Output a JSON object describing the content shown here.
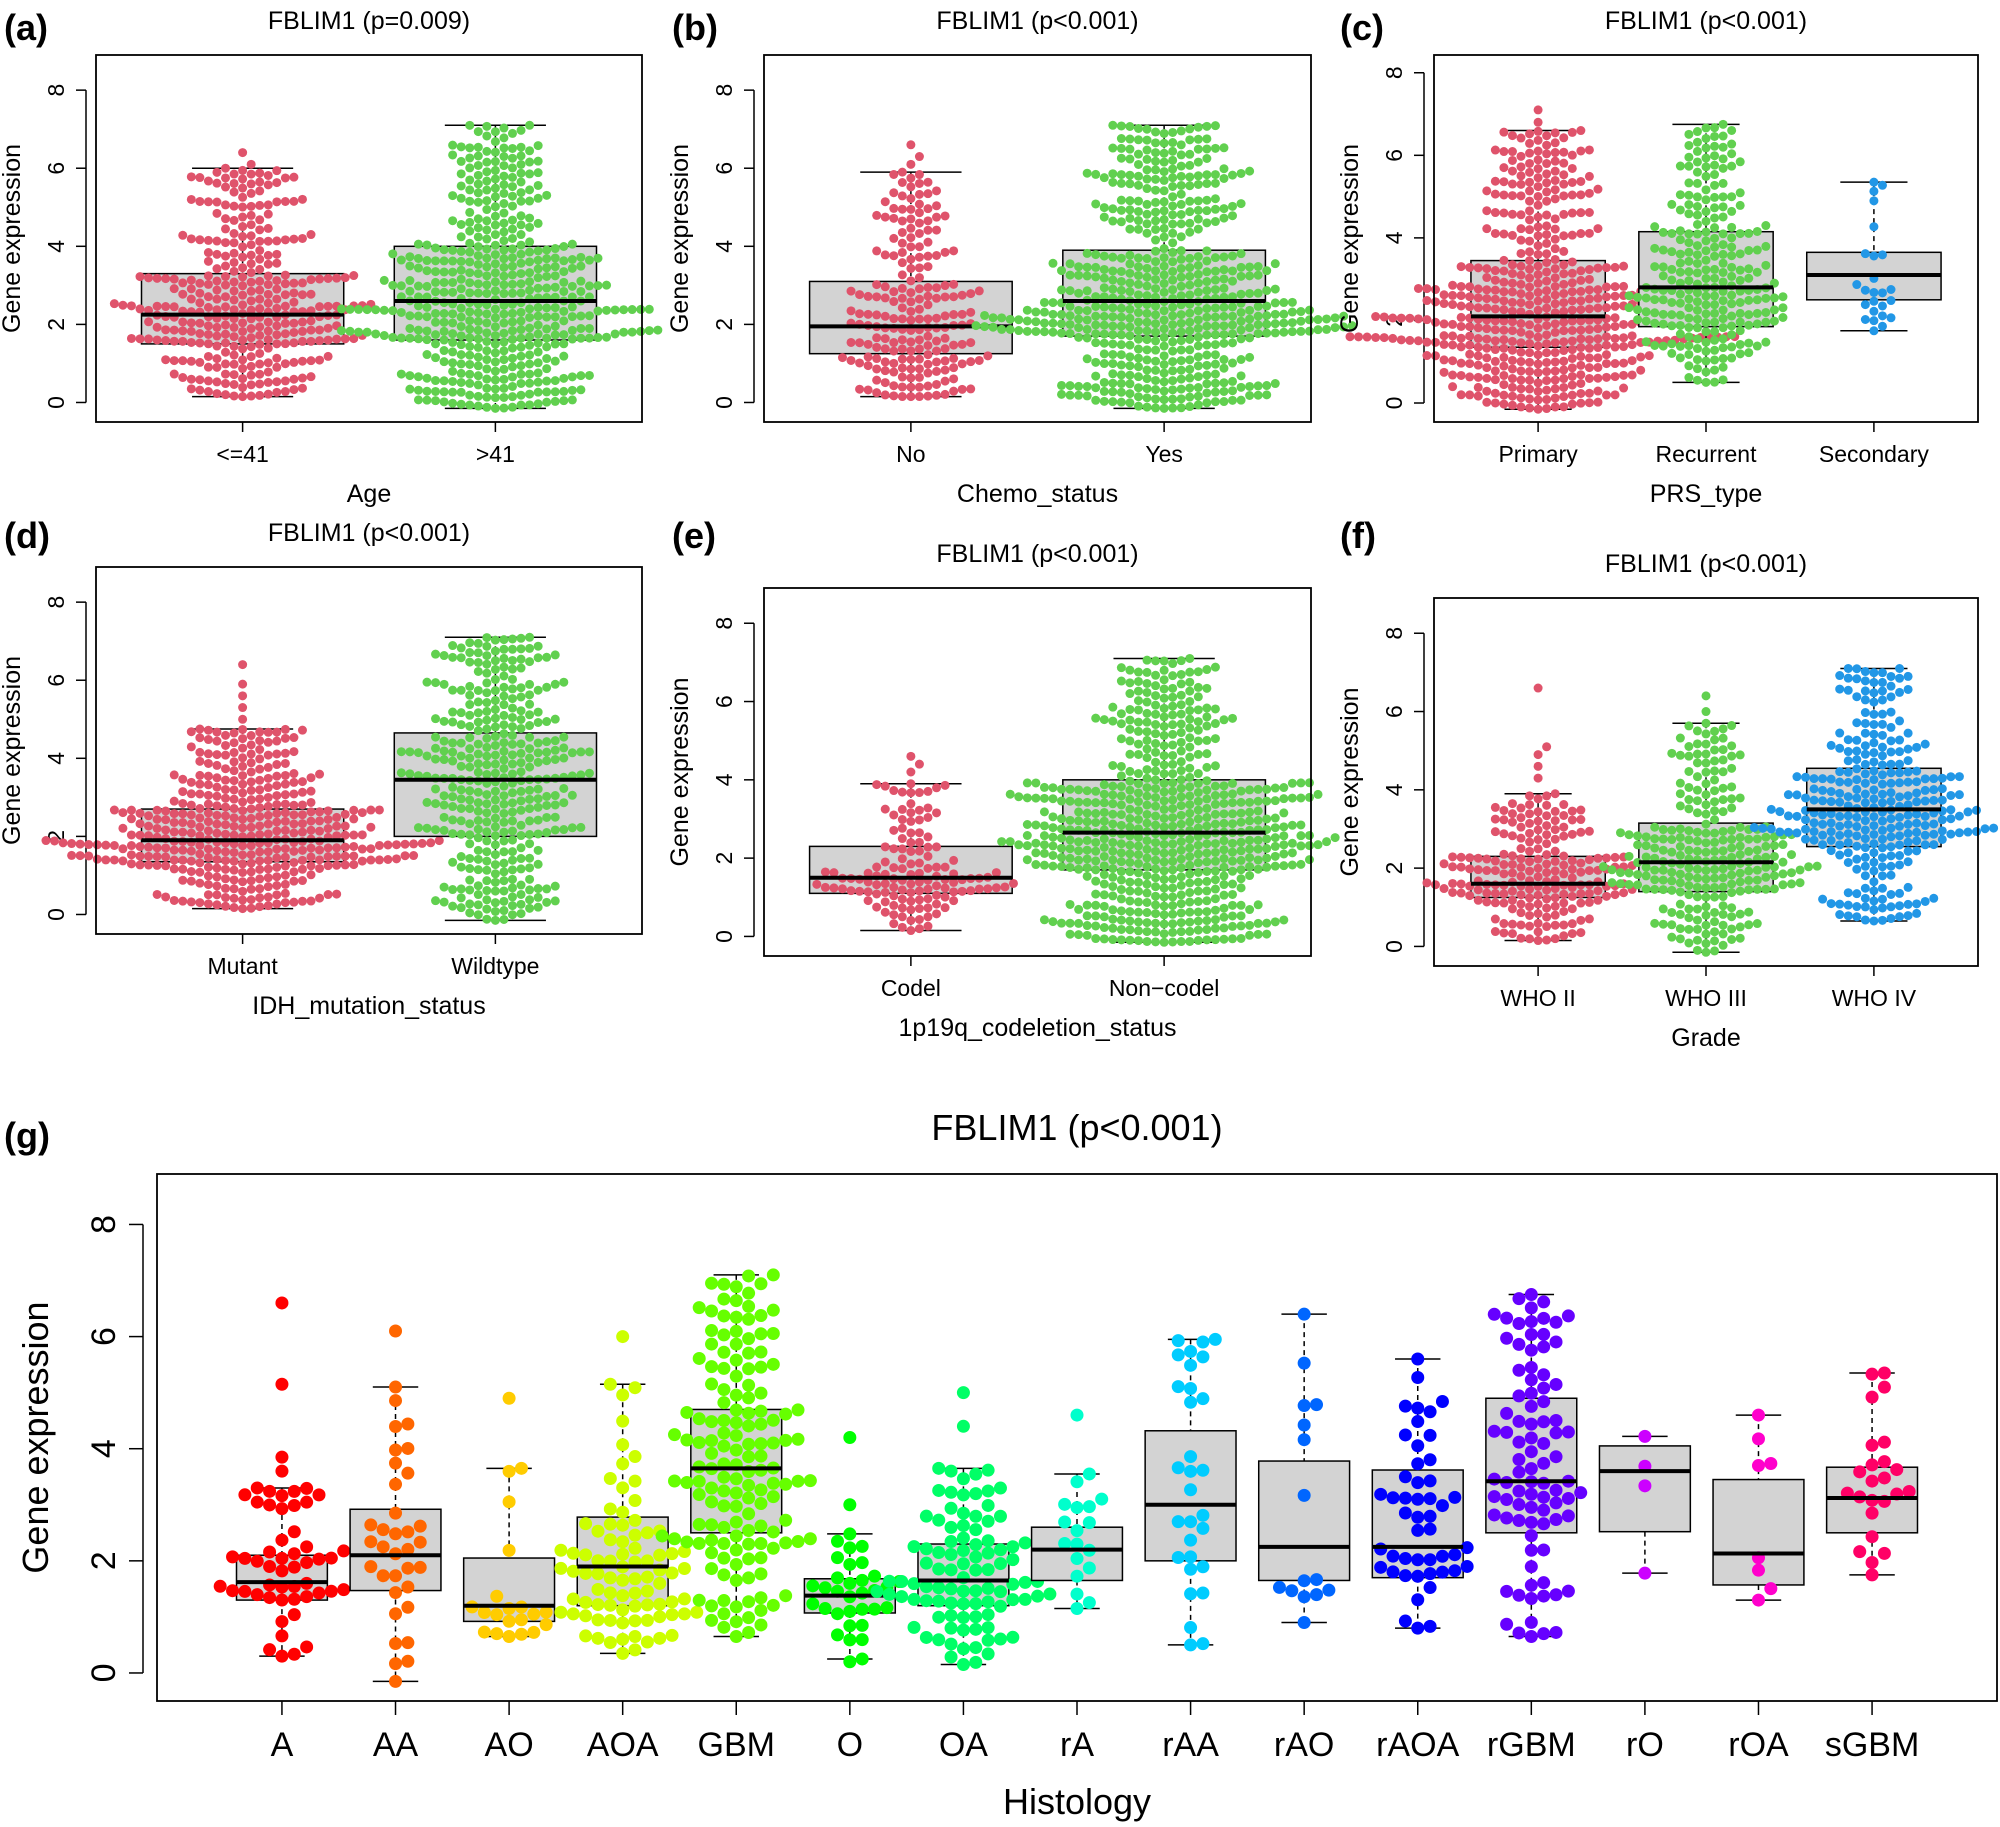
{
  "chart_data": [
    {
      "panel_label": "(a)",
      "type": "box",
      "title": "FBLIM1 (p=0.009)",
      "xlabel": "Age",
      "ylabel": "Gene expression",
      "ylim": [
        -0.5,
        8.9
      ],
      "yticks": [
        0,
        2,
        4,
        6,
        8
      ],
      "categories": [
        "<=41",
        ">41"
      ],
      "colors": [
        "#df536b",
        "#61d04f"
      ],
      "boxes": [
        {
          "min": 0.15,
          "q1": 1.5,
          "median": 2.25,
          "q3": 3.3,
          "max": 6.0,
          "outliers": [
            6.1,
            6.4
          ]
        },
        {
          "min": -0.15,
          "q1": 1.6,
          "median": 2.6,
          "q3": 4.0,
          "max": 7.1,
          "outliers": []
        }
      ]
    },
    {
      "panel_label": "(b)",
      "type": "box",
      "title": "FBLIM1 (p<0.001)",
      "xlabel": "Chemo_status",
      "ylabel": "Gene expression",
      "ylim": [
        -0.5,
        8.9
      ],
      "yticks": [
        0,
        2,
        4,
        6,
        8
      ],
      "categories": [
        "No",
        "Yes"
      ],
      "colors": [
        "#df536b",
        "#61d04f"
      ],
      "boxes": [
        {
          "min": 0.15,
          "q1": 1.25,
          "median": 1.95,
          "q3": 3.1,
          "max": 5.9,
          "outliers": [
            6.1,
            6.3,
            6.6
          ]
        },
        {
          "min": -0.15,
          "q1": 1.7,
          "median": 2.6,
          "q3": 3.9,
          "max": 7.1,
          "outliers": []
        }
      ]
    },
    {
      "panel_label": "(c)",
      "type": "box",
      "title": "FBLIM1 (p<0.001)",
      "xlabel": "PRS_type",
      "ylabel": "Gene expression",
      "ylim": [
        -0.46,
        8.43
      ],
      "yticks": [
        0,
        2,
        4,
        6,
        8
      ],
      "categories": [
        "Primary",
        "Recurrent",
        "Secondary"
      ],
      "colors": [
        "#df536b",
        "#61d04f",
        "#2297e6"
      ],
      "boxes": [
        {
          "min": -0.15,
          "q1": 1.35,
          "median": 2.1,
          "q3": 3.45,
          "max": 6.6,
          "outliers": [
            6.8,
            7.1
          ]
        },
        {
          "min": 0.5,
          "q1": 1.85,
          "median": 2.8,
          "q3": 4.15,
          "max": 6.75,
          "outliers": []
        },
        {
          "min": 1.75,
          "q1": 2.5,
          "median": 3.1,
          "q3": 3.65,
          "max": 5.35,
          "outliers": []
        }
      ]
    },
    {
      "panel_label": "(d)",
      "type": "box",
      "title": "FBLIM1 (p<0.001)",
      "xlabel": "IDH_mutation_status",
      "ylabel": "Gene expression",
      "ylim": [
        -0.5,
        8.9
      ],
      "yticks": [
        0,
        2,
        4,
        6,
        8
      ],
      "categories": [
        "Mutant",
        "Wildtype"
      ],
      "colors": [
        "#df536b",
        "#61d04f"
      ],
      "boxes": [
        {
          "min": 0.15,
          "q1": 1.35,
          "median": 1.9,
          "q3": 2.7,
          "max": 4.75,
          "outliers": [
            5.0,
            5.3,
            5.6,
            5.9,
            6.4
          ]
        },
        {
          "min": -0.15,
          "q1": 2.0,
          "median": 3.45,
          "q3": 4.65,
          "max": 7.1,
          "outliers": []
        }
      ]
    },
    {
      "panel_label": "(e)",
      "type": "box",
      "title": "FBLIM1 (p<0.001)",
      "xlabel": "1p19q_codeletion_status",
      "ylabel": "Gene expression",
      "ylim": [
        -0.5,
        8.9
      ],
      "yticks": [
        0,
        2,
        4,
        6,
        8
      ],
      "categories": [
        "Codel",
        "Non−codel"
      ],
      "colors": [
        "#df536b",
        "#61d04f"
      ],
      "boxes": [
        {
          "min": 0.15,
          "q1": 1.1,
          "median": 1.5,
          "q3": 2.3,
          "max": 3.9,
          "outliers": [
            4.2,
            4.4,
            4.6
          ]
        },
        {
          "min": -0.15,
          "q1": 1.7,
          "median": 2.65,
          "q3": 4.0,
          "max": 7.1,
          "outliers": []
        }
      ]
    },
    {
      "panel_label": "(f)",
      "type": "box",
      "title": "FBLIM1 (p<0.001)",
      "xlabel": "Grade",
      "ylabel": "Gene expression",
      "ylim": [
        -0.5,
        8.9
      ],
      "yticks": [
        0,
        2,
        4,
        6,
        8
      ],
      "categories": [
        "WHO II",
        "WHO III",
        "WHO IV"
      ],
      "colors": [
        "#df536b",
        "#61d04f",
        "#2297e6"
      ],
      "boxes": [
        {
          "min": 0.15,
          "q1": 1.25,
          "median": 1.6,
          "q3": 2.3,
          "max": 3.9,
          "outliers": [
            4.3,
            4.6,
            4.9,
            5.1,
            6.6
          ]
        },
        {
          "min": -0.15,
          "q1": 1.4,
          "median": 2.15,
          "q3": 3.15,
          "max": 5.7,
          "outliers": [
            6.0,
            6.4
          ]
        },
        {
          "min": 0.65,
          "q1": 2.55,
          "median": 3.5,
          "q3": 4.55,
          "max": 7.1,
          "outliers": []
        }
      ]
    },
    {
      "panel_label": "(g)",
      "type": "box",
      "title": "FBLIM1 (p<0.001)",
      "xlabel": "Histology",
      "ylabel": "Gene expression",
      "ylim": [
        -0.5,
        8.9
      ],
      "yticks": [
        0,
        2,
        4,
        6,
        8
      ],
      "categories": [
        "A",
        "AA",
        "AO",
        "AOA",
        "GBM",
        "O",
        "OA",
        "rA",
        "rAA",
        "rAO",
        "rAOA",
        "rGBM",
        "rO",
        "rOA",
        "sGBM"
      ],
      "colors": [
        "#FF0000",
        "#FF6600",
        "#FFCC00",
        "#CCFF00",
        "#66FF00",
        "#00FF00",
        "#00FF66",
        "#00FFCC",
        "#00CCFF",
        "#0066FF",
        "#0000FF",
        "#6600FF",
        "#CC00FF",
        "#FF00CC",
        "#FF0066"
      ],
      "boxes": [
        {
          "min": 0.3,
          "q1": 1.3,
          "median": 1.62,
          "q3": 2.1,
          "max": 3.3,
          "outliers": [
            3.6,
            3.85,
            5.15,
            6.6
          ]
        },
        {
          "min": -0.15,
          "q1": 1.47,
          "median": 2.1,
          "q3": 2.92,
          "max": 5.1,
          "outliers": [
            6.1
          ]
        },
        {
          "min": 0.65,
          "q1": 0.92,
          "median": 1.2,
          "q3": 2.05,
          "max": 3.65,
          "outliers": [
            4.9
          ]
        },
        {
          "min": 0.35,
          "q1": 1.2,
          "median": 1.9,
          "q3": 2.78,
          "max": 5.15,
          "outliers": [
            6.0
          ]
        },
        {
          "min": 0.65,
          "q1": 2.5,
          "median": 3.65,
          "q3": 4.7,
          "max": 7.1,
          "outliers": []
        },
        {
          "min": 0.25,
          "q1": 1.07,
          "median": 1.38,
          "q3": 1.68,
          "max": 2.48,
          "outliers": [
            3.0,
            4.2,
            0.2
          ]
        },
        {
          "min": 0.15,
          "q1": 1.2,
          "median": 1.65,
          "q3": 2.3,
          "max": 3.65,
          "outliers": [
            4.4,
            5.0
          ]
        },
        {
          "min": 1.15,
          "q1": 1.65,
          "median": 2.2,
          "q3": 2.6,
          "max": 3.55,
          "outliers": [
            4.6
          ]
        },
        {
          "min": 0.5,
          "q1": 2.0,
          "median": 3.0,
          "q3": 4.32,
          "max": 5.95,
          "outliers": []
        },
        {
          "min": 0.9,
          "q1": 1.65,
          "median": 2.25,
          "q3": 3.78,
          "max": 6.4,
          "outliers": []
        },
        {
          "min": 0.8,
          "q1": 1.7,
          "median": 2.25,
          "q3": 3.62,
          "max": 5.6,
          "outliers": []
        },
        {
          "min": 0.65,
          "q1": 2.5,
          "median": 3.42,
          "q3": 4.9,
          "max": 6.75,
          "outliers": []
        },
        {
          "min": 1.78,
          "q1": 2.52,
          "median": 3.6,
          "q3": 4.05,
          "max": 4.22,
          "outliers": []
        },
        {
          "min": 1.3,
          "q1": 1.57,
          "median": 2.13,
          "q3": 3.45,
          "max": 4.6,
          "outliers": []
        },
        {
          "min": 1.75,
          "q1": 2.5,
          "median": 3.12,
          "q3": 3.67,
          "max": 5.35,
          "outliers": []
        }
      ]
    }
  ]
}
